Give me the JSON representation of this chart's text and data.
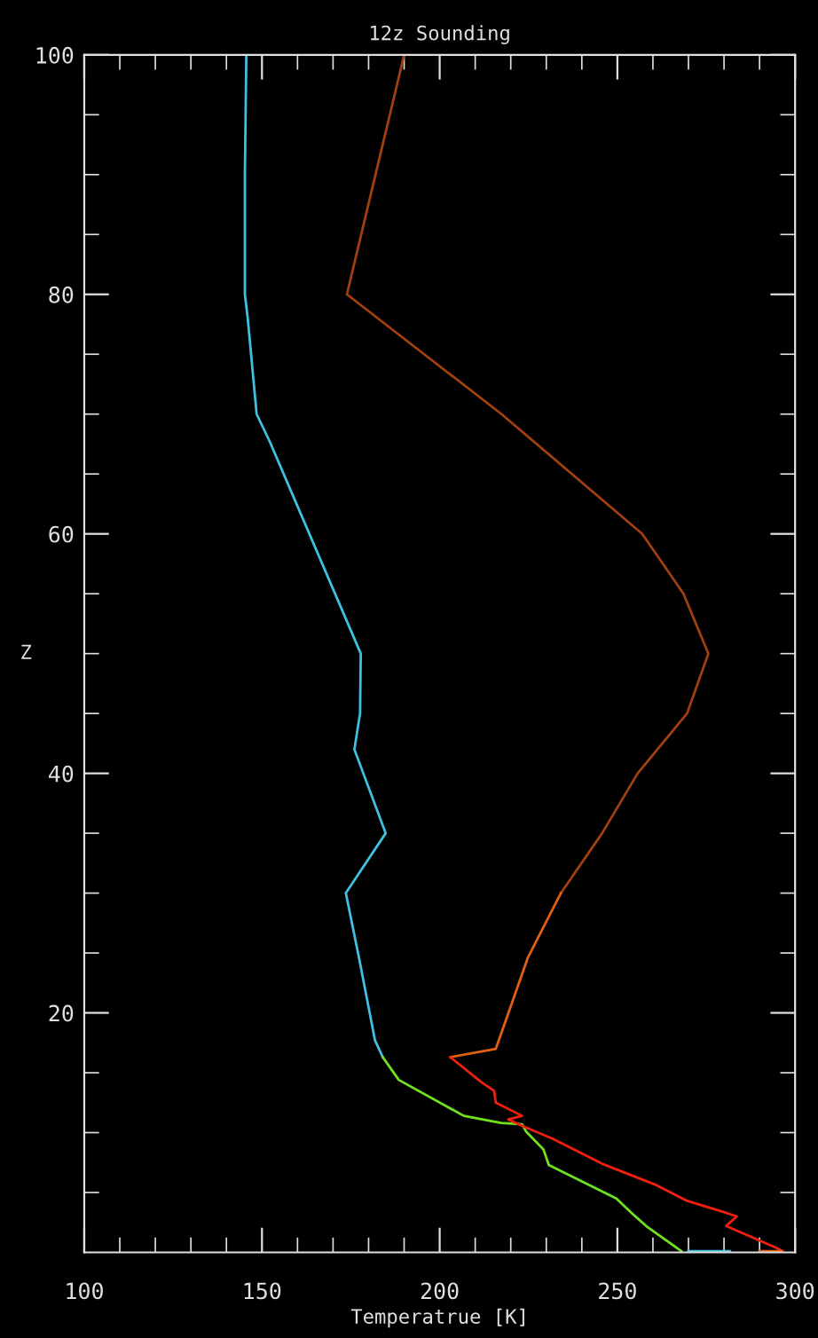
{
  "chart_data": {
    "type": "line",
    "title": "12z Sounding",
    "xlabel": "Temperatrue [K]",
    "ylabel": "Z",
    "xlim": [
      100,
      300
    ],
    "ylim": [
      0,
      100
    ],
    "xticks": [
      100,
      {
        "value": 110,
        "label": null
      },
      {
        "value": 120,
        "label": null
      },
      {
        "value": 130,
        "label": null
      },
      {
        "value": 140,
        "label": null
      },
      150,
      {
        "value": 160,
        "label": null
      },
      {
        "value": 170,
        "label": null
      },
      {
        "value": 180,
        "label": null
      },
      {
        "value": 190,
        "label": null
      },
      200,
      {
        "value": 210,
        "label": null
      },
      {
        "value": 220,
        "label": null
      },
      {
        "value": 230,
        "label": null
      },
      {
        "value": 240,
        "label": null
      },
      250,
      {
        "value": 260,
        "label": null
      },
      {
        "value": 270,
        "label": null
      },
      {
        "value": 280,
        "label": null
      },
      {
        "value": 290,
        "label": null
      },
      300
    ],
    "yticks": [
      {
        "value": 5,
        "label": null
      },
      {
        "value": 10,
        "label": null
      },
      {
        "value": 15,
        "label": null
      },
      20,
      {
        "value": 25,
        "label": null
      },
      {
        "value": 30,
        "label": null
      },
      {
        "value": 35,
        "label": null
      },
      40,
      {
        "value": 45,
        "label": null
      },
      {
        "value": 50,
        "label": null
      },
      {
        "value": 55,
        "label": null
      },
      60,
      {
        "value": 65,
        "label": null
      },
      {
        "value": 70,
        "label": null
      },
      {
        "value": 75,
        "label": null
      },
      80,
      {
        "value": 85,
        "label": null
      },
      {
        "value": 90,
        "label": null
      },
      {
        "value": 95,
        "label": null
      },
      100
    ],
    "grid": false,
    "marker": "none",
    "line_style": "solid",
    "series": [
      {
        "color": "#40c0e0",
        "x": [
          145.6,
          145.2,
          145.2,
          146,
          148.5,
          152.2,
          177.8,
          177.6,
          176,
          184.8,
          173.6,
          177.3,
          181.8,
          184
        ],
        "values": [
          100,
          90,
          80,
          78,
          70,
          67.7,
          50,
          45,
          42,
          35,
          30,
          24.6,
          17.7,
          16.3
        ]
      },
      {
        "color": "#70e020",
        "x": [
          184,
          188.5,
          206.8,
          217.3,
          223.2,
          224.3,
          229.2,
          230.7,
          249.7,
          254.7,
          258.1,
          268
        ],
        "values": [
          16.3,
          14.4,
          11.4,
          10.8,
          10.7,
          10.1,
          8.6,
          7.3,
          4.5,
          3.1,
          2.2,
          0.1
        ]
      },
      {
        "color": "#40c0e0",
        "x": [
          270,
          281.6
        ],
        "values": [
          0.1,
          0.1
        ]
      },
      {
        "color": "#a04010",
        "x": [
          190,
          173.9,
          217.4,
          257,
          268.6,
          275.6,
          269.6,
          255.7,
          245.7,
          234.1
        ],
        "values": [
          100,
          80,
          70,
          60,
          55,
          50,
          45,
          40,
          35,
          30
        ]
      },
      {
        "color": "#e06010",
        "x": [
          234.1,
          224.8,
          215.8,
          203
        ],
        "values": [
          30,
          24.6,
          17,
          16.3
        ]
      },
      {
        "color": "#f02010",
        "x": [
          203,
          211.8,
          215.3,
          215.8,
          223.2,
          219.3,
          223.7,
          231.7,
          245.7,
          261.1,
          269.6,
          280.6,
          283.6,
          280.6,
          294.5,
          296.5
        ],
        "values": [
          16.3,
          14.2,
          13.5,
          12.5,
          11.4,
          11.1,
          10.5,
          9.5,
          7.4,
          5.6,
          4.3,
          3.3,
          3,
          2.2,
          0.4,
          0.1
        ]
      },
      {
        "color": "#e06010",
        "x": [
          290,
          296
        ],
        "values": [
          0.1,
          0.1
        ]
      }
    ]
  }
}
